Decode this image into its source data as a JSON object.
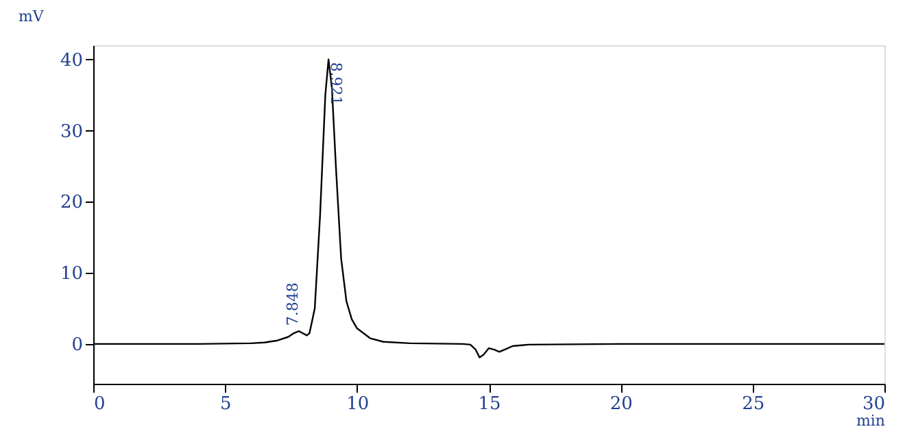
{
  "chart_data": {
    "type": "line",
    "xlabel": "min",
    "ylabel": "mV",
    "xlim": [
      0,
      30
    ],
    "ylim": [
      -5.6,
      42
    ],
    "xticks": [
      0,
      5,
      10,
      15,
      20,
      25,
      30
    ],
    "yticks": [
      0,
      10,
      20,
      30,
      40
    ],
    "grid": false,
    "marker": "none",
    "line_style": "solid",
    "series": [
      {
        "color": "#000000",
        "x": [
          0,
          4,
          6,
          6.5,
          7.0,
          7.4,
          7.6,
          7.8,
          8.0,
          8.1,
          8.2,
          8.4,
          8.6,
          8.8,
          8.921,
          9.05,
          9.2,
          9.4,
          9.6,
          9.8,
          10,
          10.5,
          11,
          12,
          14,
          14.3,
          14.5,
          14.65,
          14.8,
          15.0,
          15.2,
          15.4,
          15.6,
          15.9,
          16.5,
          20,
          25,
          30
        ],
        "values": [
          0,
          0,
          0.1,
          0.2,
          0.5,
          1.0,
          1.5,
          1.8,
          1.4,
          1.2,
          1.5,
          5,
          18,
          35,
          40,
          36,
          25,
          12,
          6,
          3.5,
          2.2,
          0.8,
          0.3,
          0.1,
          0,
          -0.1,
          -0.8,
          -1.9,
          -1.5,
          -0.6,
          -0.8,
          -1.1,
          -0.8,
          -0.3,
          -0.1,
          0,
          0,
          0
        ]
      }
    ],
    "annotations": [
      {
        "text": "7.848",
        "x": 7.848,
        "y": 1.8
      },
      {
        "text": "8.921",
        "x": 8.921,
        "y": 40
      }
    ]
  }
}
